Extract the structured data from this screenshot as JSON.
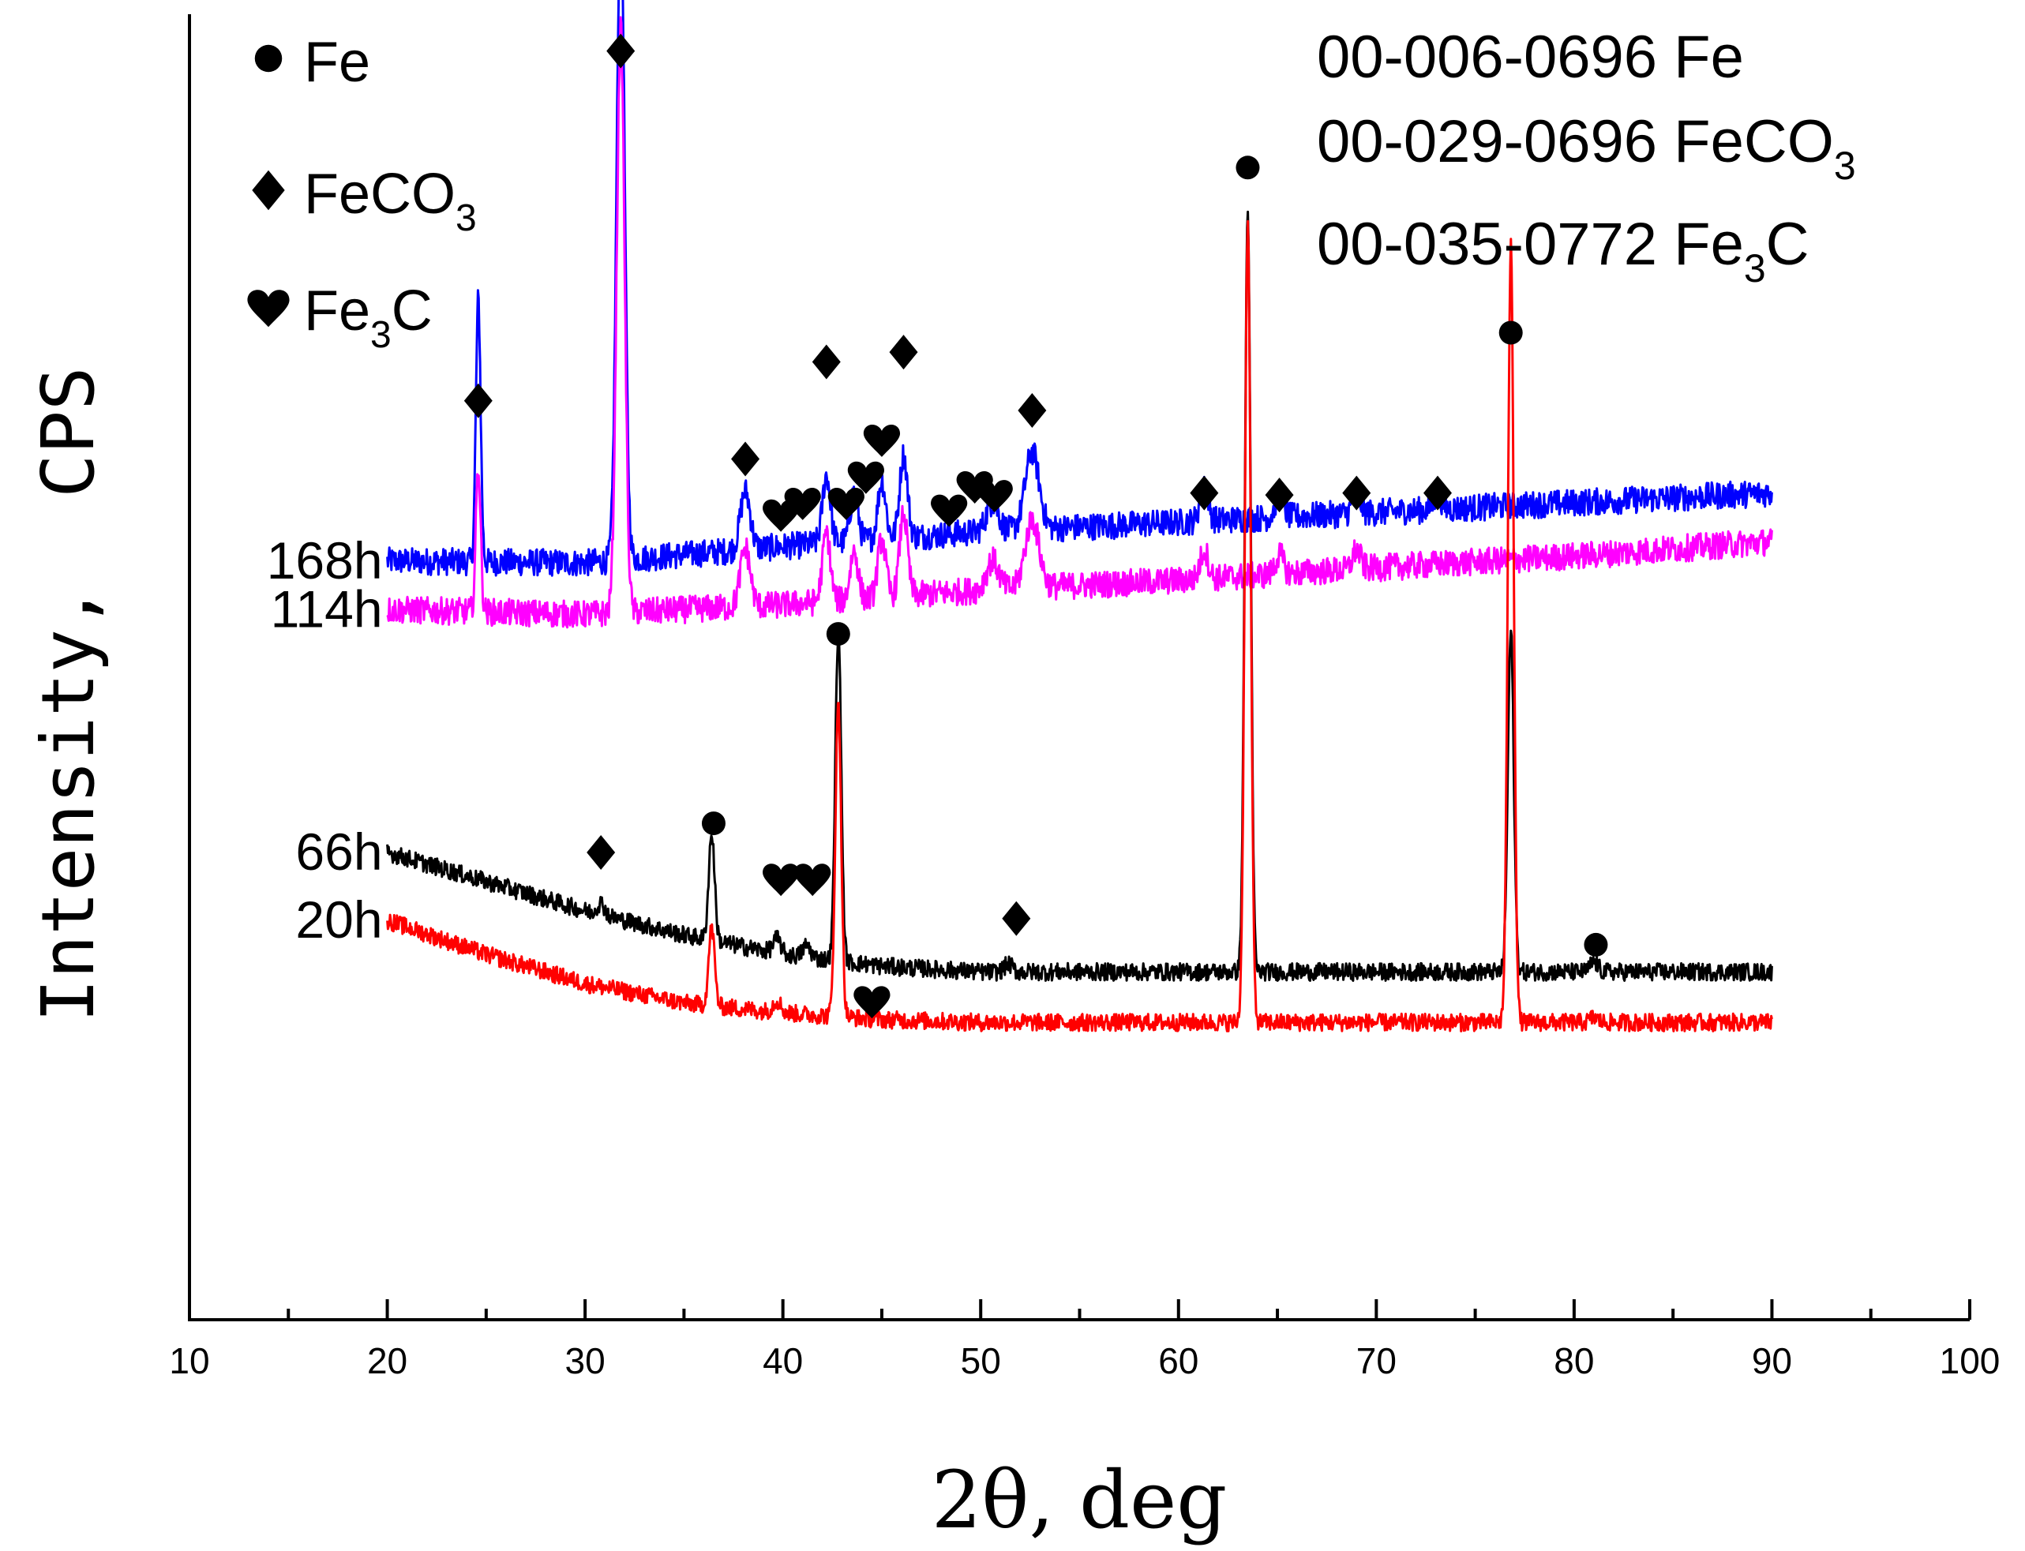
{
  "chart_data": {
    "type": "line",
    "title": "",
    "xlabel": "2θ, deg",
    "ylabel": "Intensity,  CPS",
    "xlim": [
      10,
      100
    ],
    "x_ticks": [
      10,
      20,
      30,
      40,
      50,
      60,
      70,
      80,
      90,
      100
    ],
    "y_ticks": [],
    "grid": false,
    "legend": {
      "placement": "top-left",
      "entries": [
        {
          "symbol": "circle",
          "name": "Fe",
          "base": "Fe",
          "sub": ""
        },
        {
          "symbol": "diamond",
          "name": "FeCO3",
          "base": "FeCO",
          "sub": "3",
          "tail": ""
        },
        {
          "symbol": "heart",
          "name": "Fe3C",
          "base": "Fe",
          "sub": "3",
          "tail": "C"
        }
      ]
    },
    "reference_cards": [
      {
        "code": "00-006-0696",
        "phase": "Fe",
        "base": "00-006-0696 Fe",
        "sub": "",
        "tail": ""
      },
      {
        "code": "00-029-0696",
        "phase": "FeCO3",
        "base": "00-029-0696 FeCO",
        "sub": "3",
        "tail": ""
      },
      {
        "code": "00-035-0772",
        "phase": "Fe3C",
        "base": "00-035-0772 Fe",
        "sub": "3",
        "tail": "C"
      }
    ],
    "series": [
      {
        "name": "168h",
        "color": "#0000ff",
        "x_start": 20,
        "x_end": 90,
        "baseline": [
          [
            20,
            75.5
          ],
          [
            30,
            75.3
          ],
          [
            40,
            77
          ],
          [
            50,
            78.5
          ],
          [
            60,
            79.5
          ],
          [
            70,
            80.5
          ],
          [
            80,
            81.5
          ],
          [
            90,
            82.5
          ]
        ],
        "noise": 1.4,
        "peaks": [
          [
            24.6,
            27,
            0.12
          ],
          [
            31.8,
            68,
            0.2
          ],
          [
            38.1,
            6,
            0.25
          ],
          [
            42.2,
            7,
            0.2
          ],
          [
            43.6,
            5,
            0.2
          ],
          [
            45.0,
            6,
            0.2
          ],
          [
            46.1,
            8.5,
            0.2
          ],
          [
            50.6,
            3,
            0.3
          ],
          [
            52.6,
            8,
            0.35
          ],
          [
            61.3,
            4,
            0.2
          ],
          [
            65.1,
            2.5,
            0.2
          ],
          [
            69.0,
            2,
            0.2
          ],
          [
            73.1,
            1.5,
            0.2
          ]
        ]
      },
      {
        "name": "114h",
        "color": "#ff00ff",
        "x_start": 20,
        "x_end": 90,
        "baseline": [
          [
            20,
            70.5
          ],
          [
            30,
            70
          ],
          [
            40,
            71
          ],
          [
            50,
            72.5
          ],
          [
            60,
            73.5
          ],
          [
            70,
            74.8
          ],
          [
            80,
            76
          ],
          [
            90,
            77.5
          ]
        ],
        "noise": 1.4,
        "peaks": [
          [
            24.6,
            15,
            0.12
          ],
          [
            31.8,
            60,
            0.2
          ],
          [
            38.1,
            6,
            0.25
          ],
          [
            42.2,
            7,
            0.2
          ],
          [
            43.6,
            5,
            0.2
          ],
          [
            45.0,
            6,
            0.2
          ],
          [
            46.1,
            8.5,
            0.2
          ],
          [
            50.6,
            3,
            0.3
          ],
          [
            52.6,
            7,
            0.35
          ],
          [
            61.3,
            3,
            0.2
          ],
          [
            65.1,
            2,
            0.2
          ],
          [
            69.0,
            2,
            0.2
          ]
        ]
      },
      {
        "name": "66h",
        "color": "#000000",
        "x_start": 20,
        "x_end": 90,
        "baseline": [
          [
            20,
            45.5
          ],
          [
            25,
            42.5
          ],
          [
            30,
            39.5
          ],
          [
            35,
            37
          ],
          [
            40,
            35
          ],
          [
            45,
            33.8
          ],
          [
            50,
            33.2
          ],
          [
            60,
            33.2
          ],
          [
            70,
            33.2
          ],
          [
            80,
            33.2
          ],
          [
            90,
            33.2
          ]
        ],
        "noise": 0.9,
        "peaks": [
          [
            30.8,
            1.2,
            0.2
          ],
          [
            36.4,
            11,
            0.15
          ],
          [
            39.7,
            1.5,
            0.2
          ],
          [
            41.2,
            1.2,
            0.2
          ],
          [
            42.8,
            34,
            0.15
          ],
          [
            51.4,
            0.8,
            0.2
          ],
          [
            63.5,
            78,
            0.15
          ],
          [
            76.8,
            35,
            0.15
          ],
          [
            81.0,
            1,
            0.2
          ]
        ]
      },
      {
        "name": "20h",
        "color": "#ff0000",
        "x_start": 20,
        "x_end": 90,
        "baseline": [
          [
            20,
            38.5
          ],
          [
            25,
            35
          ],
          [
            30,
            32
          ],
          [
            35,
            30
          ],
          [
            40,
            29
          ],
          [
            45,
            28.3
          ],
          [
            50,
            28
          ],
          [
            60,
            28
          ],
          [
            70,
            28
          ],
          [
            80,
            28
          ],
          [
            90,
            28
          ]
        ],
        "noise": 0.9,
        "peaks": [
          [
            36.4,
            8,
            0.15
          ],
          [
            39.7,
            1.2,
            0.2
          ],
          [
            42.8,
            32,
            0.15
          ],
          [
            63.5,
            82,
            0.15
          ],
          [
            76.8,
            80,
            0.15
          ],
          [
            81.0,
            0.5,
            0.2
          ]
        ]
      }
    ],
    "annotations": [
      {
        "symbol": "diamond",
        "x": 24.6,
        "y": 92
      },
      {
        "symbol": "diamond",
        "x": 31.8,
        "y": 128
      },
      {
        "symbol": "diamond",
        "x": 38.1,
        "y": 86
      },
      {
        "symbol": "diamond",
        "x": 42.2,
        "y": 96
      },
      {
        "symbol": "diamond",
        "x": 46.1,
        "y": 97
      },
      {
        "symbol": "diamond",
        "x": 52.6,
        "y": 91
      },
      {
        "symbol": "diamond",
        "x": 61.3,
        "y": 82.5
      },
      {
        "symbol": "diamond",
        "x": 65.1,
        "y": 82.3
      },
      {
        "symbol": "diamond",
        "x": 69.0,
        "y": 82.5
      },
      {
        "symbol": "diamond",
        "x": 73.1,
        "y": 82.5
      },
      {
        "symbol": "heart",
        "x": 39.9,
        "y": 80.3
      },
      {
        "symbol": "heart",
        "x": 41.0,
        "y": 81.5
      },
      {
        "symbol": "heart",
        "x": 43.2,
        "y": 81.5
      },
      {
        "symbol": "heart",
        "x": 44.2,
        "y": 84.2
      },
      {
        "symbol": "heart",
        "x": 45.0,
        "y": 88
      },
      {
        "symbol": "heart",
        "x": 48.4,
        "y": 80.8
      },
      {
        "symbol": "heart",
        "x": 49.7,
        "y": 83.2
      },
      {
        "symbol": "heart",
        "x": 50.7,
        "y": 82.3
      },
      {
        "symbol": "circle",
        "x": 63.5,
        "y": 116
      },
      {
        "symbol": "circle",
        "x": 76.8,
        "y": 99
      },
      {
        "symbol": "circle",
        "x": 42.8,
        "y": 68
      },
      {
        "symbol": "circle",
        "x": 36.5,
        "y": 48.5
      },
      {
        "symbol": "circle",
        "x": 81.1,
        "y": 36
      },
      {
        "symbol": "diamond",
        "x": 30.8,
        "y": 45.5
      },
      {
        "symbol": "diamond",
        "x": 51.8,
        "y": 38.7
      },
      {
        "symbol": "heart",
        "x": 39.9,
        "y": 42.8
      },
      {
        "symbol": "heart",
        "x": 41.5,
        "y": 42.8
      },
      {
        "symbol": "heart",
        "x": 44.5,
        "y": 30.2
      }
    ]
  }
}
